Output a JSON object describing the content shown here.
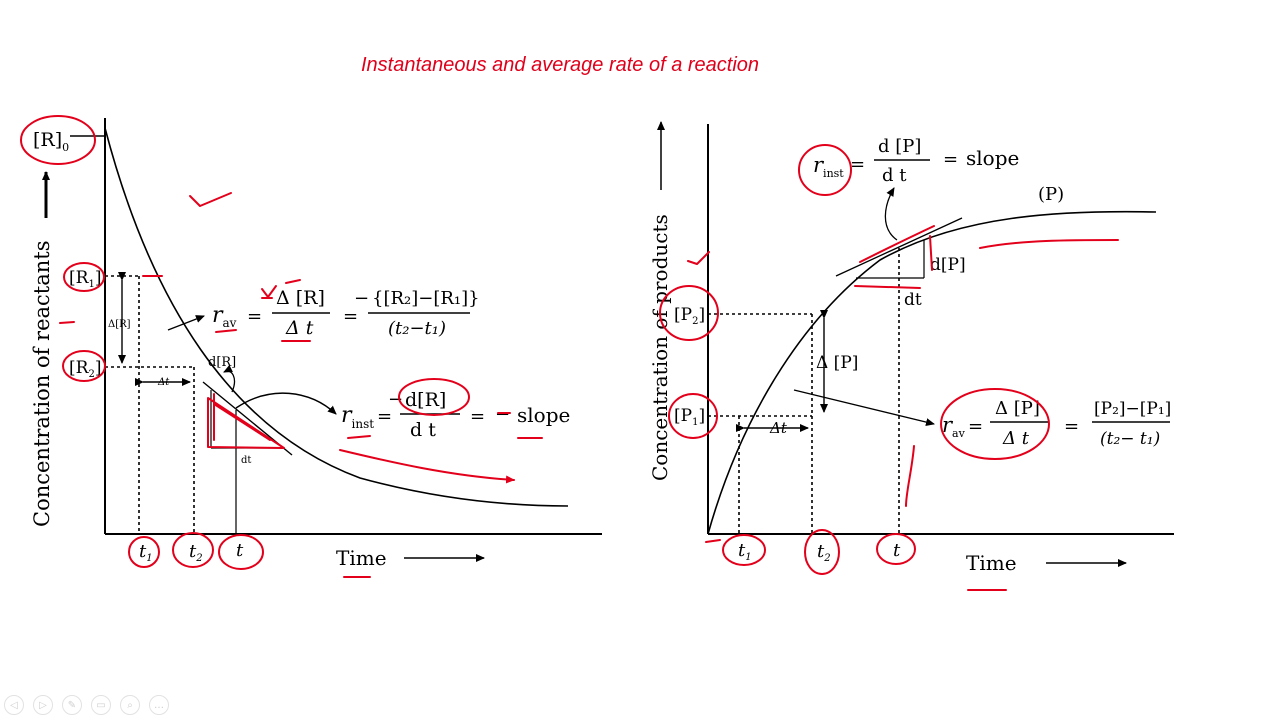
{
  "title": "Instantaneous and average rate of a reaction",
  "left_graph": {
    "y_axis_label": "Concentration of reactants",
    "x_axis_label": "Time",
    "r0_label": "[R]",
    "r0_sub": "0",
    "r1_label": "[R",
    "r1_sub": "1",
    "r2_label": "[R",
    "r2_sub": "2",
    "delta_r_label": "Δ[R]",
    "delta_t_label": "Δt",
    "dR_label": "d[R]",
    "dt_label": "dt",
    "t1_label": "t",
    "t1_sub": "1",
    "t2_label": "t",
    "t2_sub": "2",
    "t_label": "t",
    "r_av_symbol": "r",
    "r_av_sub": "av",
    "r_av_num": "Δ [R]",
    "r_av_den": "Δ t",
    "r_av_minus": "−",
    "r_av_rhs_num": "{[R₂]−[R₁]}",
    "r_av_rhs_den": "(t₂−t₁)",
    "r_inst_symbol": "r",
    "r_inst_sub": "inst",
    "r_inst_num": "d[R]",
    "r_inst_den": "d t",
    "r_inst_rhs": "slope",
    "minus": "−",
    "equals": "="
  },
  "right_graph": {
    "y_axis_label": "Concentration of products",
    "x_axis_label": "Time",
    "p_curve_label": "(P)",
    "p1_label": "[P",
    "p1_sub": "1",
    "p2_label": "[P",
    "p2_sub": "2",
    "delta_p_label": "Δ [P]",
    "delta_t_label": "Δt",
    "dP_label": "d[P]",
    "dt_label": "dt",
    "t1_label": "t",
    "t1_sub": "1",
    "t2_label": "t",
    "t2_sub": "2",
    "t_label": "t",
    "r_inst_symbol": "r",
    "r_inst_sub": "inst",
    "r_inst_num": "d [P]",
    "r_inst_den": "d t",
    "r_inst_rhs": "slope",
    "r_av_symbol": "r",
    "r_av_sub": "av",
    "r_av_num": "Δ [P]",
    "r_av_den": "Δ t",
    "r_av_rhs_num": "[P₂]−[P₁]",
    "r_av_rhs_den": "(t₂− t₁)",
    "equals": "="
  },
  "colors": {
    "annotation": "#e3001b",
    "title": "#e0001b",
    "ink": "#000000"
  },
  "toolbar": {
    "icons": [
      "back-icon",
      "forward-icon",
      "pen-icon",
      "copy-icon",
      "zoom-icon",
      "more-icon"
    ],
    "glyphs": [
      "◁",
      "▷",
      "✎",
      "▭",
      "⌕",
      "…"
    ]
  }
}
